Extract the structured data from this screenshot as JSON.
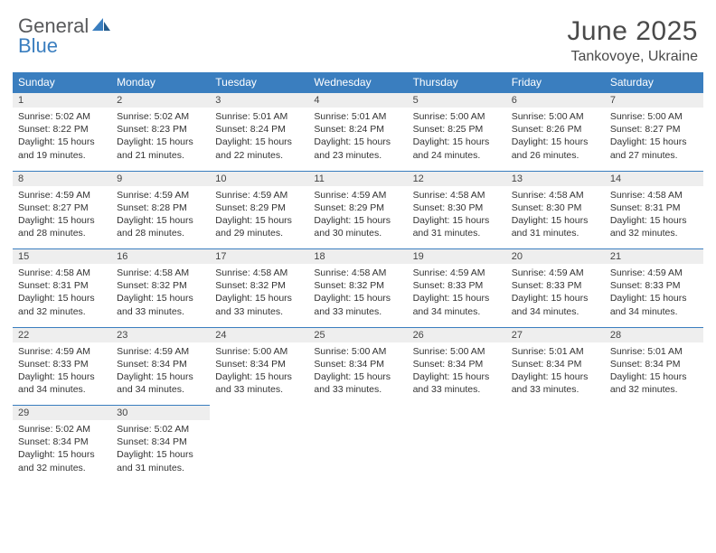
{
  "brand": {
    "word1": "General",
    "word2": "Blue"
  },
  "title": "June 2025",
  "location": "Tankovoye, Ukraine",
  "colors": {
    "header_bg": "#3a7ebf",
    "header_text": "#ffffff",
    "daynum_bg": "#eeeeee",
    "daynum_border": "#3a7ebf",
    "body_text": "#333333",
    "title_text": "#4a4a4a",
    "logo_gray": "#58595b",
    "logo_blue": "#3a7ebf",
    "page_bg": "#ffffff"
  },
  "typography": {
    "title_fontsize": 30,
    "location_fontsize": 16,
    "weekday_fontsize": 12,
    "daynum_fontsize": 11,
    "cell_fontsize": 10.5
  },
  "weekdays": [
    "Sunday",
    "Monday",
    "Tuesday",
    "Wednesday",
    "Thursday",
    "Friday",
    "Saturday"
  ],
  "weeks": [
    [
      {
        "day": "1",
        "sunrise": "5:02 AM",
        "sunset": "8:22 PM",
        "daylight": "15 hours and 19 minutes."
      },
      {
        "day": "2",
        "sunrise": "5:02 AM",
        "sunset": "8:23 PM",
        "daylight": "15 hours and 21 minutes."
      },
      {
        "day": "3",
        "sunrise": "5:01 AM",
        "sunset": "8:24 PM",
        "daylight": "15 hours and 22 minutes."
      },
      {
        "day": "4",
        "sunrise": "5:01 AM",
        "sunset": "8:24 PM",
        "daylight": "15 hours and 23 minutes."
      },
      {
        "day": "5",
        "sunrise": "5:00 AM",
        "sunset": "8:25 PM",
        "daylight": "15 hours and 24 minutes."
      },
      {
        "day": "6",
        "sunrise": "5:00 AM",
        "sunset": "8:26 PM",
        "daylight": "15 hours and 26 minutes."
      },
      {
        "day": "7",
        "sunrise": "5:00 AM",
        "sunset": "8:27 PM",
        "daylight": "15 hours and 27 minutes."
      }
    ],
    [
      {
        "day": "8",
        "sunrise": "4:59 AM",
        "sunset": "8:27 PM",
        "daylight": "15 hours and 28 minutes."
      },
      {
        "day": "9",
        "sunrise": "4:59 AM",
        "sunset": "8:28 PM",
        "daylight": "15 hours and 28 minutes."
      },
      {
        "day": "10",
        "sunrise": "4:59 AM",
        "sunset": "8:29 PM",
        "daylight": "15 hours and 29 minutes."
      },
      {
        "day": "11",
        "sunrise": "4:59 AM",
        "sunset": "8:29 PM",
        "daylight": "15 hours and 30 minutes."
      },
      {
        "day": "12",
        "sunrise": "4:58 AM",
        "sunset": "8:30 PM",
        "daylight": "15 hours and 31 minutes."
      },
      {
        "day": "13",
        "sunrise": "4:58 AM",
        "sunset": "8:30 PM",
        "daylight": "15 hours and 31 minutes."
      },
      {
        "day": "14",
        "sunrise": "4:58 AM",
        "sunset": "8:31 PM",
        "daylight": "15 hours and 32 minutes."
      }
    ],
    [
      {
        "day": "15",
        "sunrise": "4:58 AM",
        "sunset": "8:31 PM",
        "daylight": "15 hours and 32 minutes."
      },
      {
        "day": "16",
        "sunrise": "4:58 AM",
        "sunset": "8:32 PM",
        "daylight": "15 hours and 33 minutes."
      },
      {
        "day": "17",
        "sunrise": "4:58 AM",
        "sunset": "8:32 PM",
        "daylight": "15 hours and 33 minutes."
      },
      {
        "day": "18",
        "sunrise": "4:58 AM",
        "sunset": "8:32 PM",
        "daylight": "15 hours and 33 minutes."
      },
      {
        "day": "19",
        "sunrise": "4:59 AM",
        "sunset": "8:33 PM",
        "daylight": "15 hours and 34 minutes."
      },
      {
        "day": "20",
        "sunrise": "4:59 AM",
        "sunset": "8:33 PM",
        "daylight": "15 hours and 34 minutes."
      },
      {
        "day": "21",
        "sunrise": "4:59 AM",
        "sunset": "8:33 PM",
        "daylight": "15 hours and 34 minutes."
      }
    ],
    [
      {
        "day": "22",
        "sunrise": "4:59 AM",
        "sunset": "8:33 PM",
        "daylight": "15 hours and 34 minutes."
      },
      {
        "day": "23",
        "sunrise": "4:59 AM",
        "sunset": "8:34 PM",
        "daylight": "15 hours and 34 minutes."
      },
      {
        "day": "24",
        "sunrise": "5:00 AM",
        "sunset": "8:34 PM",
        "daylight": "15 hours and 33 minutes."
      },
      {
        "day": "25",
        "sunrise": "5:00 AM",
        "sunset": "8:34 PM",
        "daylight": "15 hours and 33 minutes."
      },
      {
        "day": "26",
        "sunrise": "5:00 AM",
        "sunset": "8:34 PM",
        "daylight": "15 hours and 33 minutes."
      },
      {
        "day": "27",
        "sunrise": "5:01 AM",
        "sunset": "8:34 PM",
        "daylight": "15 hours and 33 minutes."
      },
      {
        "day": "28",
        "sunrise": "5:01 AM",
        "sunset": "8:34 PM",
        "daylight": "15 hours and 32 minutes."
      }
    ],
    [
      {
        "day": "29",
        "sunrise": "5:02 AM",
        "sunset": "8:34 PM",
        "daylight": "15 hours and 32 minutes."
      },
      {
        "day": "30",
        "sunrise": "5:02 AM",
        "sunset": "8:34 PM",
        "daylight": "15 hours and 31 minutes."
      },
      null,
      null,
      null,
      null,
      null
    ]
  ],
  "labels": {
    "sunrise": "Sunrise:",
    "sunset": "Sunset:",
    "daylight": "Daylight:"
  }
}
